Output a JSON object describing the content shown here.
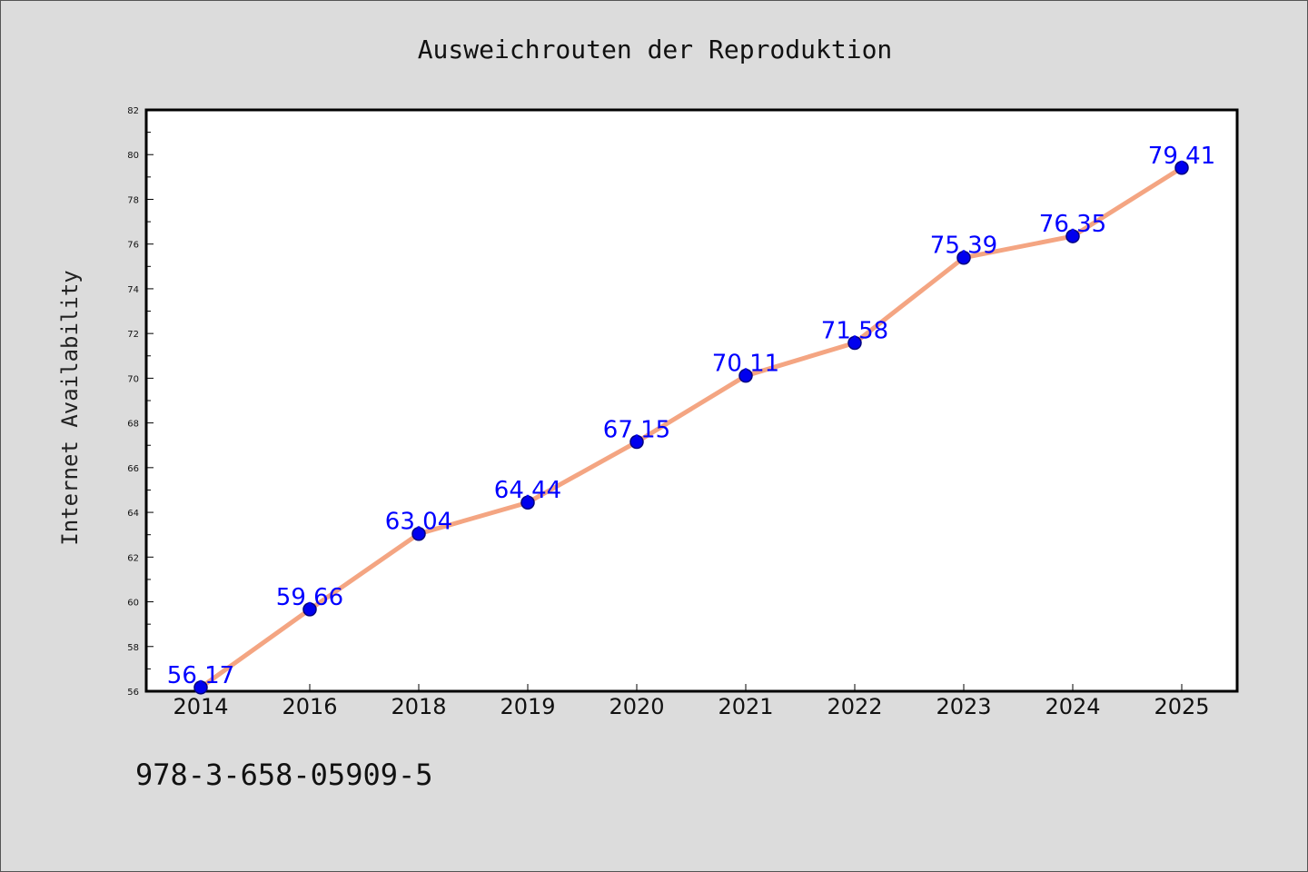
{
  "chart_data": {
    "type": "line",
    "title": "Ausweichrouten der Reproduktion",
    "xlabel": "",
    "ylabel": "Internet Availability",
    "categories": [
      "2014",
      "2016",
      "2018",
      "2019",
      "2020",
      "2021",
      "2022",
      "2023",
      "2024",
      "2025"
    ],
    "series": [
      {
        "values": [
          56.17,
          59.66,
          63.04,
          64.44,
          67.15,
          70.11,
          71.58,
          75.39,
          76.35,
          79.41
        ]
      }
    ],
    "data_labels": [
      "56.17",
      "59.66",
      "63.04",
      "64.44",
      "67.15",
      "70.11",
      "71.58",
      "75.39",
      "76.35",
      "79.41"
    ],
    "ylim": [
      56,
      82
    ],
    "yticks": [
      "56",
      "58",
      "60",
      "62",
      "64",
      "66",
      "68",
      "70",
      "72",
      "74",
      "76",
      "78",
      "80",
      "82"
    ],
    "grid": false,
    "legend": "none",
    "colors": {
      "line": "#f4a582",
      "marker_fill": "#0000ee",
      "marker_edge": "#000080",
      "data_label": "#0000ff",
      "background": "#dcdcdc",
      "plot_area": "#ffffff"
    }
  },
  "footer": {
    "isbn": "978-3-658-05909-5"
  }
}
